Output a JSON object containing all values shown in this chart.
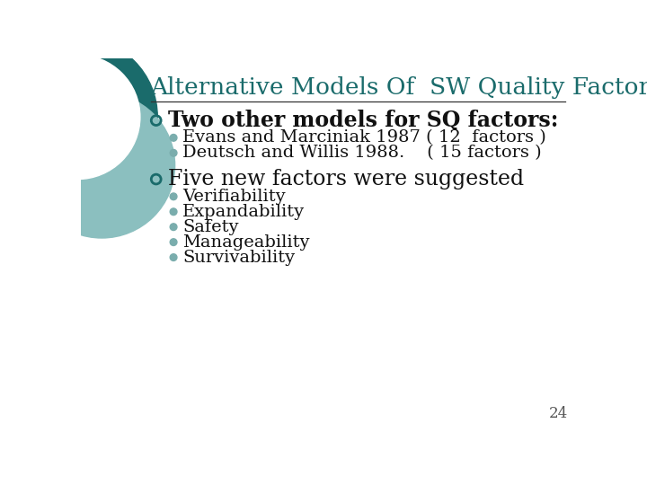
{
  "title": "Alternative Models Of  SW Quality Factors",
  "title_color": "#1a6b6b",
  "background_color": "#FFFFFF",
  "slide_number": "24",
  "bullet1_text": "Two other models for SQ factors:",
  "sub_bullets1": [
    "Evans and Marciniak 1987 ( 12  factors )",
    "Deutsch and Willis 1988.    ( 15 factors )"
  ],
  "bullet2_text": "Five new factors were suggested",
  "sub_bullets2": [
    "Verifiability",
    "Expandability",
    "Safety",
    "Manageability",
    "Survivability"
  ],
  "text_color": "#111111",
  "teal_color": "#1a6b6b",
  "bullet_dot_color": "#7AADAD",
  "line_color": "#333333",
  "circle_dark": "#1a6b6b",
  "circle_light": "#8BBFBF"
}
